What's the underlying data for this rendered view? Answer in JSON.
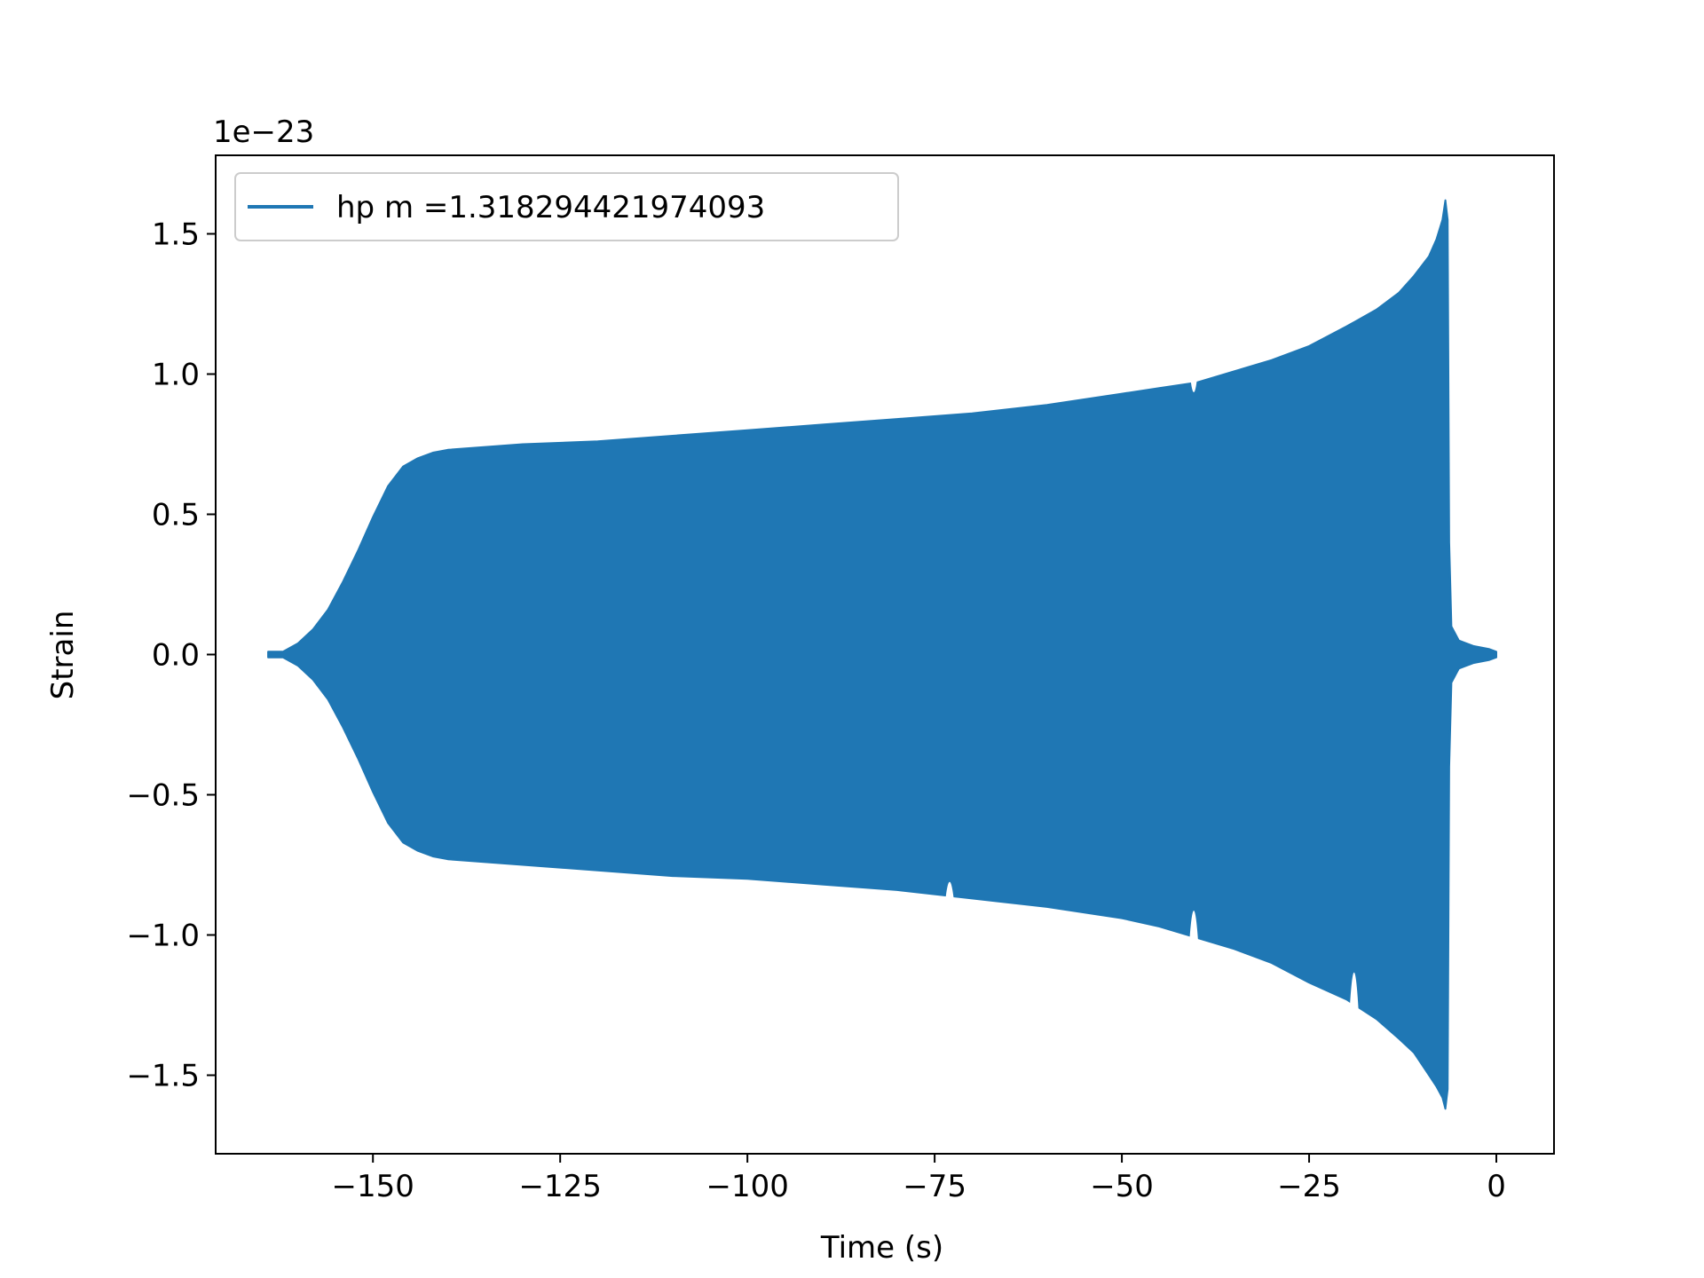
{
  "chart_data": {
    "type": "line",
    "title": "",
    "xlabel": "Time (s)",
    "ylabel": "Strain",
    "offset_label": "1e−23",
    "xlim": [
      -171,
      7.7
    ],
    "ylim": [
      -1.78,
      1.78
    ],
    "y_scale_exponent": -23,
    "grid": false,
    "legend": {
      "placement": "upper-left",
      "entries": [
        "hp m =1.318294421974093"
      ]
    },
    "x_ticks": [
      {
        "value": -150,
        "label": "−150"
      },
      {
        "value": -125,
        "label": "−125"
      },
      {
        "value": -100,
        "label": "−100"
      },
      {
        "value": -75,
        "label": "−75"
      },
      {
        "value": -50,
        "label": "−50"
      },
      {
        "value": -25,
        "label": "−25"
      },
      {
        "value": 0,
        "label": "0"
      }
    ],
    "y_ticks": [
      {
        "value": -1.5,
        "label": "−1.5"
      },
      {
        "value": -1.0,
        "label": "−1.0"
      },
      {
        "value": -0.5,
        "label": "−0.5"
      },
      {
        "value": 0.0,
        "label": "0.0"
      },
      {
        "value": 0.5,
        "label": "0.5"
      },
      {
        "value": 1.0,
        "label": "1.0"
      },
      {
        "value": 1.5,
        "label": "1.5"
      }
    ],
    "series": [
      {
        "name": "hp m =1.318294421974093",
        "color": "#1f77b4",
        "style": "dense oscillation (filled envelope)",
        "envelope_upper": [
          [
            -164.0,
            0.01
          ],
          [
            -162.0,
            0.01
          ],
          [
            -160.0,
            0.04
          ],
          [
            -158.0,
            0.09
          ],
          [
            -156.0,
            0.16
          ],
          [
            -154.0,
            0.26
          ],
          [
            -152.0,
            0.37
          ],
          [
            -150.0,
            0.49
          ],
          [
            -148.0,
            0.6
          ],
          [
            -146.0,
            0.67
          ],
          [
            -144.0,
            0.7
          ],
          [
            -142.0,
            0.72
          ],
          [
            -140.0,
            0.73
          ],
          [
            -130.0,
            0.75
          ],
          [
            -120.0,
            0.76
          ],
          [
            -110.0,
            0.78
          ],
          [
            -100.0,
            0.8
          ],
          [
            -90.0,
            0.82
          ],
          [
            -80.0,
            0.84
          ],
          [
            -70.0,
            0.86
          ],
          [
            -60.0,
            0.89
          ],
          [
            -50.0,
            0.93
          ],
          [
            -45.0,
            0.95
          ],
          [
            -40.0,
            0.97
          ],
          [
            -35.0,
            1.01
          ],
          [
            -30.0,
            1.05
          ],
          [
            -25.0,
            1.1
          ],
          [
            -20.0,
            1.17
          ],
          [
            -16.0,
            1.23
          ],
          [
            -13.0,
            1.29
          ],
          [
            -11.0,
            1.35
          ],
          [
            -9.0,
            1.42
          ],
          [
            -8.0,
            1.48
          ],
          [
            -7.2,
            1.55
          ],
          [
            -6.8,
            1.62
          ],
          [
            -6.5,
            1.55
          ],
          [
            -6.3,
            0.4
          ],
          [
            -6.0,
            0.1
          ],
          [
            -5.0,
            0.05
          ],
          [
            -3.0,
            0.03
          ],
          [
            -1.0,
            0.02
          ],
          [
            0.0,
            0.01
          ]
        ],
        "envelope_lower": [
          [
            -164.0,
            -0.01
          ],
          [
            -162.0,
            -0.01
          ],
          [
            -160.0,
            -0.04
          ],
          [
            -158.0,
            -0.09
          ],
          [
            -156.0,
            -0.16
          ],
          [
            -154.0,
            -0.26
          ],
          [
            -152.0,
            -0.37
          ],
          [
            -150.0,
            -0.49
          ],
          [
            -148.0,
            -0.6
          ],
          [
            -146.0,
            -0.67
          ],
          [
            -144.0,
            -0.7
          ],
          [
            -142.0,
            -0.72
          ],
          [
            -140.0,
            -0.73
          ],
          [
            -130.0,
            -0.75
          ],
          [
            -120.0,
            -0.77
          ],
          [
            -110.0,
            -0.79
          ],
          [
            -100.0,
            -0.8
          ],
          [
            -90.0,
            -0.82
          ],
          [
            -80.0,
            -0.84
          ],
          [
            -70.0,
            -0.87
          ],
          [
            -60.0,
            -0.9
          ],
          [
            -50.0,
            -0.94
          ],
          [
            -45.0,
            -0.97
          ],
          [
            -40.0,
            -1.01
          ],
          [
            -35.0,
            -1.05
          ],
          [
            -30.0,
            -1.1
          ],
          [
            -25.0,
            -1.17
          ],
          [
            -20.0,
            -1.23
          ],
          [
            -16.0,
            -1.3
          ],
          [
            -13.0,
            -1.37
          ],
          [
            -11.0,
            -1.42
          ],
          [
            -9.0,
            -1.5
          ],
          [
            -8.0,
            -1.54
          ],
          [
            -7.2,
            -1.58
          ],
          [
            -6.8,
            -1.62
          ],
          [
            -6.5,
            -1.55
          ],
          [
            -6.3,
            -0.4
          ],
          [
            -6.0,
            -0.1
          ],
          [
            -5.0,
            -0.05
          ],
          [
            -3.0,
            -0.03
          ],
          [
            -1.0,
            -0.02
          ],
          [
            0.0,
            -0.01
          ]
        ],
        "notches": [
          {
            "x": -40.4,
            "upper_to": 0.85,
            "lower_to": -0.8
          },
          {
            "x": -73.0,
            "lower_to": -0.74
          },
          {
            "x": -19.0,
            "lower_to": -1.0
          }
        ]
      }
    ]
  }
}
